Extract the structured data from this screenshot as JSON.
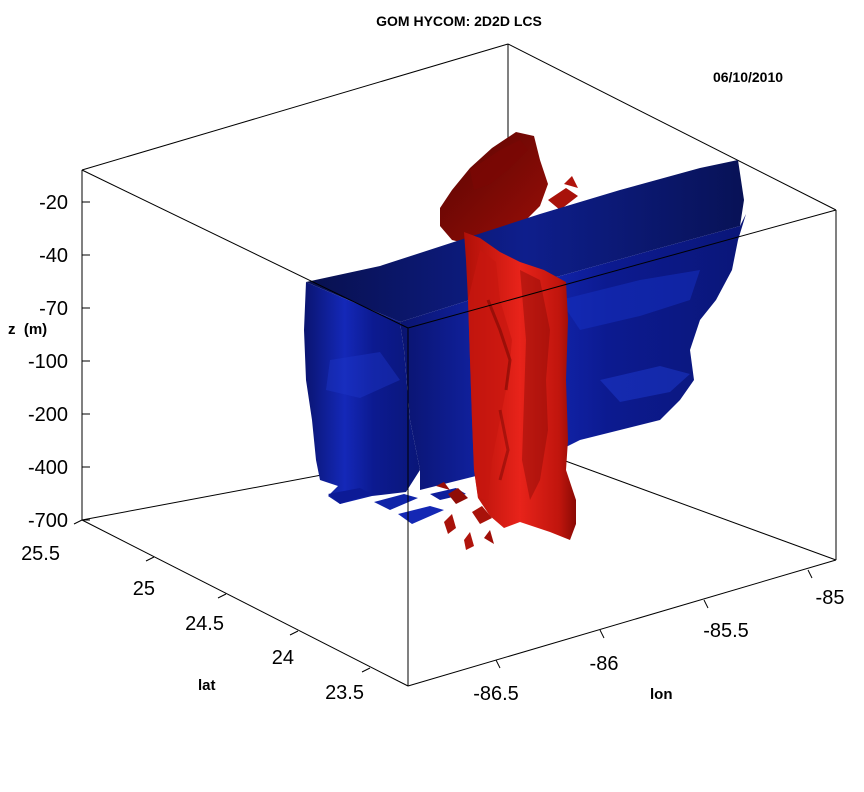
{
  "chart_data": {
    "type": "3d-isosurface",
    "title": "GOM HYCOM: 2D2D LCS",
    "date": "06/10/2010",
    "axes": {
      "z": {
        "label": "z  (m)",
        "ticks": [
          "-20",
          "-40",
          "-70",
          "-100",
          "-200",
          "-400",
          "-700"
        ]
      },
      "lat": {
        "label": "lat",
        "ticks": [
          "25.5",
          "25",
          "24.5",
          "24",
          "23.5"
        ],
        "range": [
          23.5,
          25.5
        ]
      },
      "lon": {
        "label": "lon",
        "ticks": [
          "-86.5",
          "-86",
          "-85.5",
          "-85"
        ],
        "range": [
          -86.5,
          -85
        ]
      }
    },
    "colors": {
      "surface_a": "#0a1a8c",
      "surface_b": "#c8140f"
    },
    "grid": false
  }
}
